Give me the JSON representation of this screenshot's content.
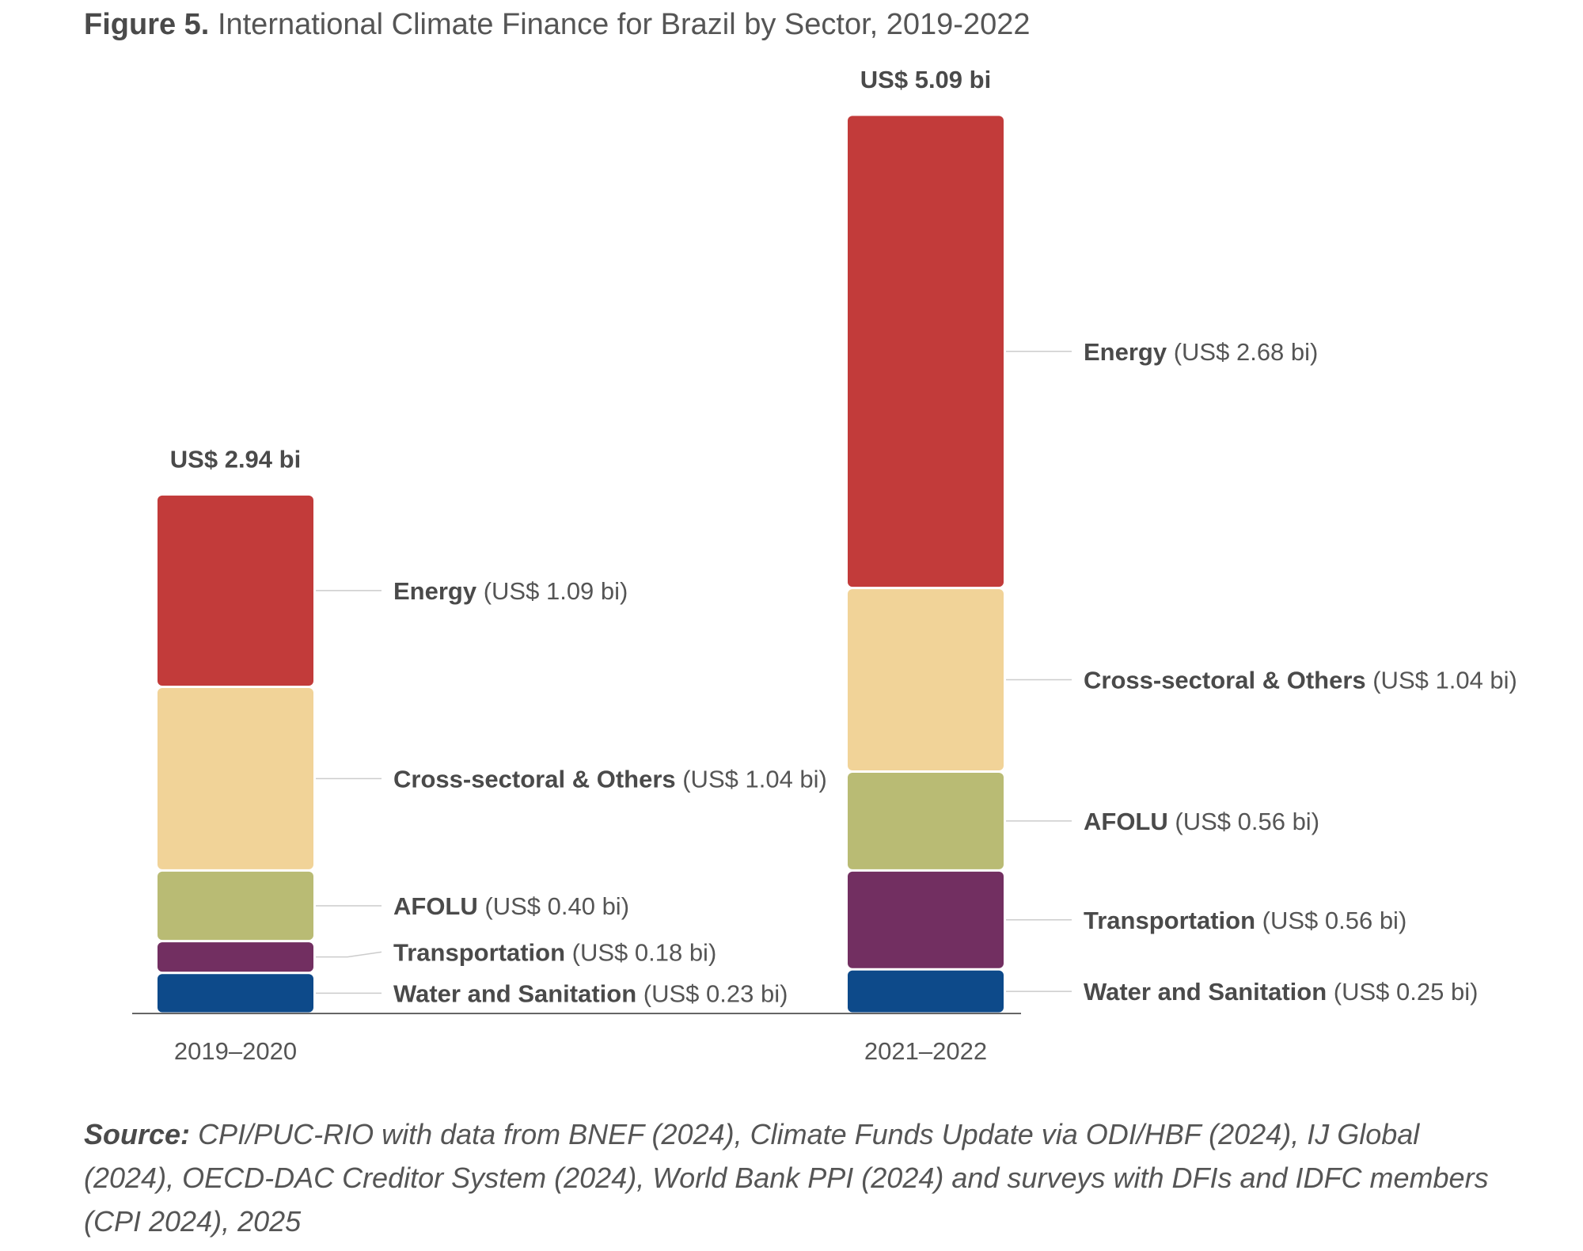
{
  "figure": {
    "label": "Figure 5.",
    "title": "International Climate Finance for Brazil by Sector, 2019-2022"
  },
  "chart_data": {
    "type": "bar",
    "stacked": true,
    "categories": [
      "2019–2020",
      "2021–2022"
    ],
    "totals": [
      2.94,
      5.09
    ],
    "total_labels": [
      "US$ 2.94 bi",
      "US$ 5.09 bi"
    ],
    "unit": "US$ bi",
    "series": [
      {
        "name": "Water and Sanitation",
        "color": "#0d4a8a",
        "values": [
          0.23,
          0.25
        ],
        "value_labels": [
          "(US$ 0.23 bi)",
          "(US$ 0.25 bi)"
        ]
      },
      {
        "name": "Transportation",
        "color": "#722f61",
        "values": [
          0.18,
          0.56
        ],
        "value_labels": [
          "(US$ 0.18 bi)",
          "(US$ 0.56 bi)"
        ]
      },
      {
        "name": "AFOLU",
        "color": "#b9bb74",
        "values": [
          0.4,
          0.56
        ],
        "value_labels": [
          "(US$ 0.40 bi)",
          "(US$ 0.56 bi)"
        ]
      },
      {
        "name": "Cross-sectoral & Others",
        "color": "#f1d398",
        "values": [
          1.04,
          1.04
        ],
        "value_labels": [
          "(US$ 1.04 bi)",
          "(US$ 1.04 bi)"
        ]
      },
      {
        "name": "Energy",
        "color": "#c23b3a",
        "values": [
          1.09,
          2.68
        ],
        "value_labels": [
          "(US$ 1.09 bi)",
          "(US$ 2.68 bi)"
        ]
      }
    ],
    "xlabel": "",
    "ylabel": "",
    "grid": false,
    "legend": "inline-labels-right-of-bars"
  },
  "source": {
    "label": "Source:",
    "text": "CPI/PUC-RIO with data from BNEF (2024), Climate Funds Update via ODI/HBF (2024), IJ Global (2024), OECD-DAC Creditor System (2024), World Bank PPI (2024) and surveys with DFIs and IDFC members (CPI 2024), 2025"
  }
}
